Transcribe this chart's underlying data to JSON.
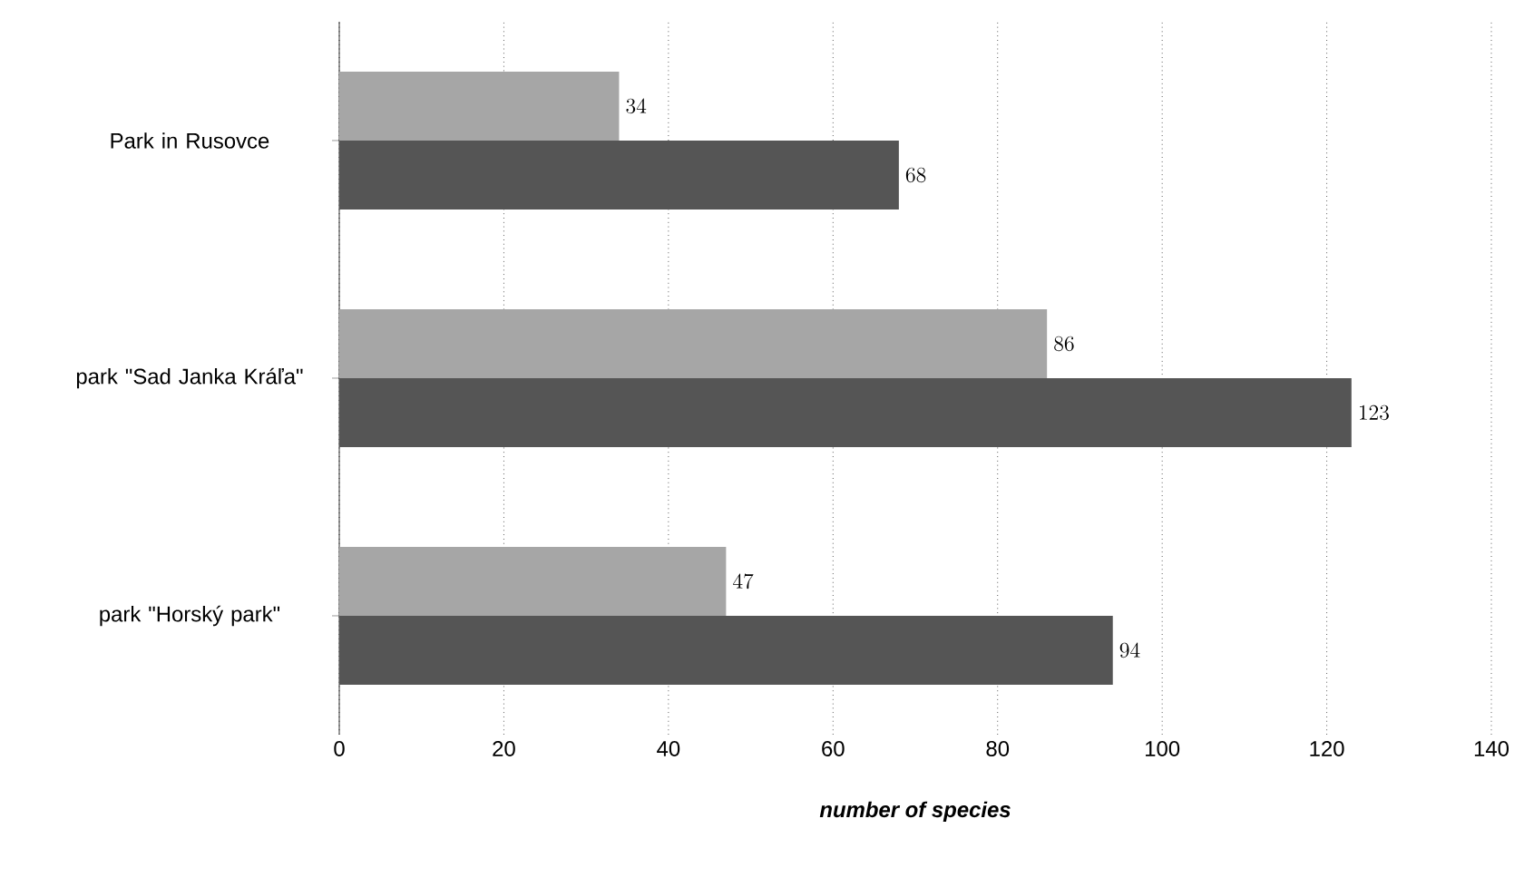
{
  "chart_data": {
    "type": "bar",
    "orientation": "horizontal",
    "xlabel": "number of species",
    "categories": [
      "Park in Rusovce",
      "park \"Sad Janka Kráľa\"",
      "park \"Horský park\""
    ],
    "series": [
      {
        "color": "#a6a6a6",
        "values": [
          34,
          86,
          47
        ]
      },
      {
        "color": "#555555",
        "values": [
          68,
          123,
          94
        ]
      }
    ],
    "xlim": [
      0,
      140
    ],
    "xticks": [
      0,
      20,
      40,
      60,
      80,
      100,
      120,
      140
    ],
    "grid": "x",
    "data_labels": true
  }
}
